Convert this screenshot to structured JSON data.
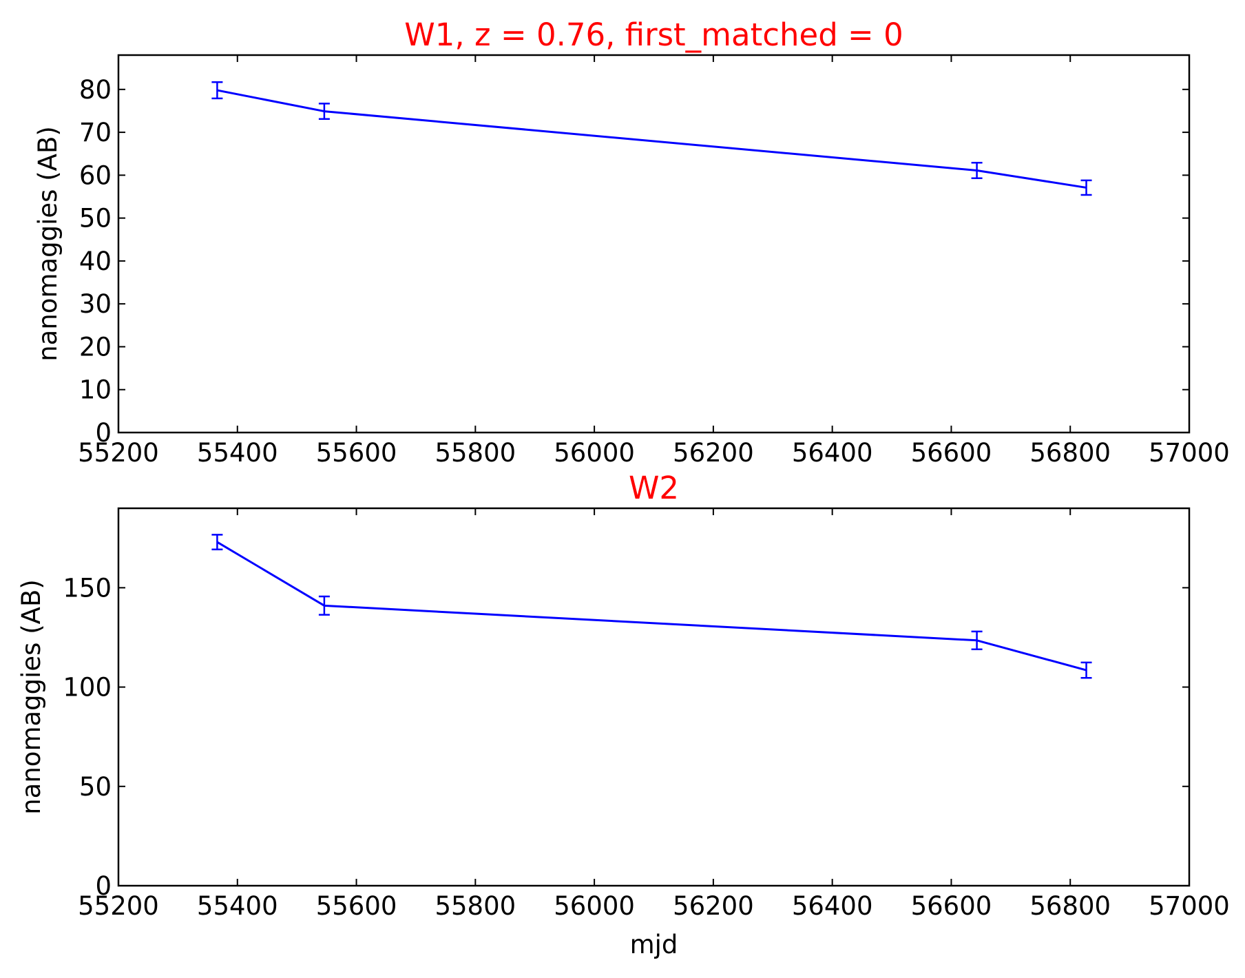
{
  "chart_data": [
    {
      "type": "line",
      "title": "W1, z = 0.76, first_matched = 0",
      "title_color": "#ff0000",
      "xlabel": "",
      "ylabel": "nanomaggies (AB)",
      "xlim": [
        55200,
        57000
      ],
      "ylim": [
        0,
        88
      ],
      "xticks": [
        55200,
        55400,
        55600,
        55800,
        56000,
        56200,
        56400,
        56600,
        56800,
        57000
      ],
      "yticks": [
        0,
        10,
        20,
        30,
        40,
        50,
        60,
        70,
        80
      ],
      "grid": false,
      "series": [
        {
          "color": "#0000ff",
          "x": [
            55366,
            55546,
            56643,
            56827
          ],
          "y": [
            79.8,
            74.9,
            61.1,
            57.1
          ],
          "yerr": [
            1.9,
            1.8,
            1.8,
            1.7
          ]
        }
      ]
    },
    {
      "type": "line",
      "title": "W2",
      "title_color": "#ff0000",
      "xlabel": "mjd",
      "ylabel": "nanomaggies (AB)",
      "xlim": [
        55200,
        57000
      ],
      "ylim": [
        0,
        190
      ],
      "xticks": [
        55200,
        55400,
        55600,
        55800,
        56000,
        56200,
        56400,
        56600,
        56800,
        57000
      ],
      "yticks": [
        0,
        50,
        100,
        150
      ],
      "grid": false,
      "series": [
        {
          "color": "#0000ff",
          "x": [
            55366,
            55546,
            56643,
            56827
          ],
          "y": [
            173.0,
            141.0,
            123.5,
            108.5
          ],
          "yerr": [
            3.7,
            4.6,
            4.5,
            3.9
          ]
        }
      ]
    }
  ]
}
